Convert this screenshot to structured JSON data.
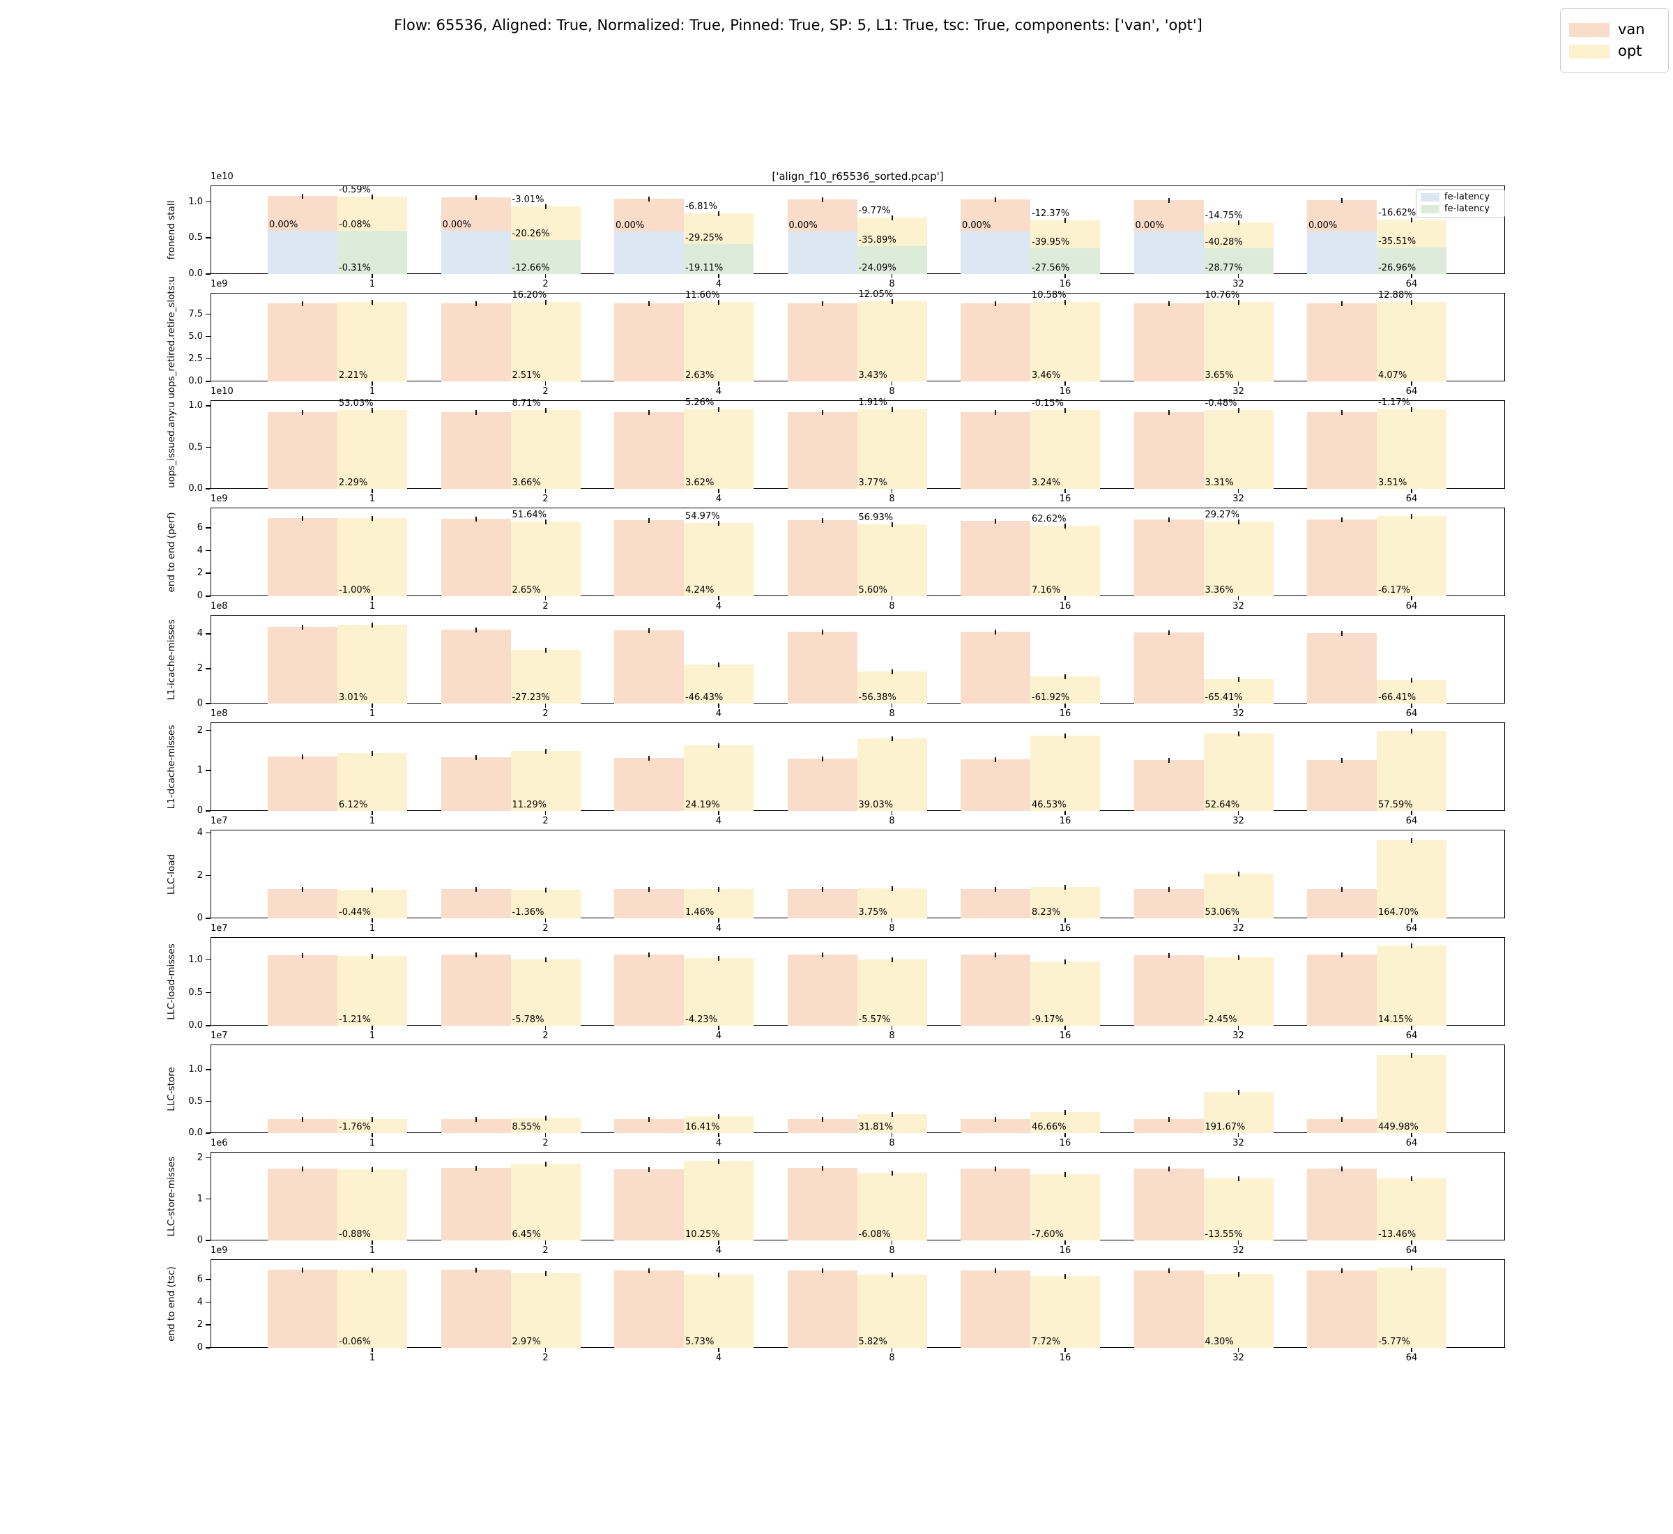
{
  "figure": {
    "title": "Flow: 65536, Aligned: True, Normalized: True, Pinned: True, SP: 5, L1: True, tsc: True, components: ['van', 'opt']",
    "subplot_title": "['align_f10_r65536_sorted.pcap']",
    "legend": [
      {
        "label": "van",
        "color": "#f9dcca"
      },
      {
        "label": "opt",
        "color": "#fdf2cf"
      }
    ]
  },
  "colors": {
    "van": "#f9dcca",
    "opt": "#fdf2cf",
    "fe_latency_van": "#dbe8f4",
    "fe_latency_opt": "#ddecda",
    "error_bar": "#111111"
  },
  "chart_data": {
    "type": "bar",
    "categories": [
      "1",
      "2",
      "4",
      "8",
      "16",
      "32",
      "64"
    ],
    "series_names": [
      "van",
      "opt"
    ],
    "axes_legend": {
      "entries": [
        {
          "label": "fe-latency",
          "color_key": "fe_latency_van"
        },
        {
          "label": "fe-latency",
          "color_key": "fe_latency_opt"
        }
      ]
    },
    "rows": [
      {
        "ylabel": "fronend stall",
        "offset": "1e10",
        "ymax": 1.23,
        "yticks": [
          {
            "v": 0.0,
            "label": "0.0"
          },
          {
            "v": 0.5,
            "label": "0.5"
          },
          {
            "v": 1.0,
            "label": "1.0"
          }
        ],
        "series": [
          {
            "name": "van",
            "values": [
              1.08,
              1.07,
              1.05,
              1.04,
              1.04,
              1.03,
              1.03
            ]
          },
          {
            "name": "opt",
            "values": [
              1.075,
              0.94,
              0.84,
              0.78,
              0.75,
              0.72,
              0.76
            ]
          }
        ],
        "overlays": [
          {
            "name": "fe-latency",
            "on": "van",
            "values": [
              0.6,
              0.6,
              0.595,
              0.59,
              0.59,
              0.59,
              0.59
            ]
          },
          {
            "name": "fe-latency",
            "on": "opt",
            "values": [
              0.6,
              0.475,
              0.42,
              0.385,
              0.36,
              0.355,
              0.365
            ]
          }
        ],
        "annotations": {
          "van_pct": [
            "0.00%",
            "0.00%",
            "0.00%",
            "0.00%",
            "0.00%",
            "0.00%",
            "0.00%"
          ],
          "top": [
            "-0.59%",
            "-3.01%",
            "-6.81%",
            "-9.77%",
            "-12.37%",
            "-14.75%",
            "-16.62%"
          ],
          "mid": [
            "-0.08%",
            "-20.26%",
            "-29.25%",
            "-35.89%",
            "-39.95%",
            "-40.28%",
            "-35.51%"
          ],
          "bottom": [
            "-0.31%",
            "-12.66%",
            "-19.11%",
            "-24.09%",
            "-27.56%",
            "-28.77%",
            "-26.96%"
          ]
        },
        "has_legend": true
      },
      {
        "ylabel": "uops_retired.retire_slots:u",
        "offset": "1e9",
        "ymax": 9.9,
        "yticks": [
          {
            "v": 0.0,
            "label": "0.0"
          },
          {
            "v": 2.5,
            "label": "2.5"
          },
          {
            "v": 5.0,
            "label": "5.0"
          },
          {
            "v": 7.5,
            "label": "7.5"
          }
        ],
        "series": [
          {
            "name": "van",
            "values": [
              8.7,
              8.7,
              8.72,
              8.7,
              8.72,
              8.7,
              8.7
            ]
          },
          {
            "name": "opt",
            "values": [
              8.9,
              8.85,
              8.9,
              8.95,
              8.85,
              8.9,
              8.92
            ]
          }
        ],
        "annotations": {
          "top": [
            "",
            "16.20%",
            "11.60%",
            "12.05%",
            "10.58%",
            "10.76%",
            "12.88%"
          ],
          "bottom": [
            "2.21%",
            "2.51%",
            "2.63%",
            "3.43%",
            "3.46%",
            "3.65%",
            "4.07%"
          ]
        }
      },
      {
        "ylabel": "uops_issued.any:u",
        "offset": "1e10",
        "ymax": 1.07,
        "yticks": [
          {
            "v": 0.0,
            "label": "0.0"
          },
          {
            "v": 0.5,
            "label": "0.5"
          },
          {
            "v": 1.0,
            "label": "1.0"
          }
        ],
        "series": [
          {
            "name": "van",
            "values": [
              0.93,
              0.925,
              0.925,
              0.925,
              0.925,
              0.925,
              0.925
            ]
          },
          {
            "name": "opt",
            "values": [
              0.95,
              0.955,
              0.96,
              0.96,
              0.955,
              0.955,
              0.958
            ]
          }
        ],
        "annotations": {
          "top": [
            "53.03%",
            "8.71%",
            "5.26%",
            "1.91%",
            "-0.15%",
            "-0.48%",
            "-1.17%"
          ],
          "bottom": [
            "2.29%",
            "3.66%",
            "3.62%",
            "3.77%",
            "3.24%",
            "3.31%",
            "3.51%"
          ]
        }
      },
      {
        "ylabel": "end to end (perf)",
        "offset": "1e9",
        "ymax": 7.8,
        "yticks": [
          {
            "v": 0,
            "label": "0"
          },
          {
            "v": 2,
            "label": "2"
          },
          {
            "v": 4,
            "label": "4"
          },
          {
            "v": 6,
            "label": "6"
          }
        ],
        "series": [
          {
            "name": "van",
            "values": [
              6.85,
              6.8,
              6.7,
              6.7,
              6.65,
              6.75,
              6.75
            ]
          },
          {
            "name": "opt",
            "values": [
              6.9,
              6.6,
              6.45,
              6.35,
              6.2,
              6.55,
              7.05
            ]
          }
        ],
        "annotations": {
          "top": [
            "",
            "51.64%",
            "54.97%",
            "56.93%",
            "62.62%",
            "29.27%",
            ""
          ],
          "bottom": [
            "-1.00%",
            "2.65%",
            "4.24%",
            "5.60%",
            "7.16%",
            "3.36%",
            "-6.17%"
          ]
        }
      },
      {
        "ylabel": "L1-icache-misses",
        "offset": "1e8",
        "ymax": 5.1,
        "yticks": [
          {
            "v": 0,
            "label": "0"
          },
          {
            "v": 2,
            "label": "2"
          },
          {
            "v": 4,
            "label": "4"
          }
        ],
        "series": [
          {
            "name": "van",
            "values": [
              4.4,
              4.25,
              4.2,
              4.15,
              4.12,
              4.1,
              4.05
            ]
          },
          {
            "name": "opt",
            "values": [
              4.55,
              3.1,
              2.25,
              1.85,
              1.55,
              1.42,
              1.35
            ]
          }
        ],
        "annotations": {
          "bottom": [
            "3.01%",
            "-27.23%",
            "-46.43%",
            "-56.38%",
            "-61.92%",
            "-65.41%",
            "-66.41%"
          ]
        }
      },
      {
        "ylabel": "L1-dcache-misses",
        "offset": "1e8",
        "ymax": 2.2,
        "yticks": [
          {
            "v": 0,
            "label": "0"
          },
          {
            "v": 1,
            "label": "1"
          },
          {
            "v": 2,
            "label": "2"
          }
        ],
        "series": [
          {
            "name": "van",
            "values": [
              1.35,
              1.34,
              1.31,
              1.3,
              1.28,
              1.27,
              1.27
            ]
          },
          {
            "name": "opt",
            "values": [
              1.43,
              1.49,
              1.62,
              1.8,
              1.87,
              1.92,
              2.0
            ]
          }
        ],
        "annotations": {
          "bottom": [
            "6.12%",
            "11.29%",
            "24.19%",
            "39.03%",
            "46.53%",
            "52.64%",
            "57.59%"
          ]
        }
      },
      {
        "ylabel": "LLC-load",
        "offset": "1e7",
        "ymax": 4.15,
        "yticks": [
          {
            "v": 0,
            "label": "0"
          },
          {
            "v": 2,
            "label": "2"
          },
          {
            "v": 4,
            "label": "4"
          }
        ],
        "series": [
          {
            "name": "van",
            "values": [
              1.36,
              1.36,
              1.36,
              1.36,
              1.37,
              1.36,
              1.38
            ]
          },
          {
            "name": "opt",
            "values": [
              1.35,
              1.34,
              1.38,
              1.41,
              1.48,
              2.08,
              3.65
            ]
          }
        ],
        "annotations": {
          "bottom": [
            "-0.44%",
            "-1.36%",
            "1.46%",
            "3.75%",
            "8.23%",
            "53.06%",
            "164.70%"
          ]
        }
      },
      {
        "ylabel": "LLC-load-misses",
        "offset": "1e7",
        "ymax": 1.35,
        "yticks": [
          {
            "v": 0.0,
            "label": "0.0"
          },
          {
            "v": 0.5,
            "label": "0.5"
          },
          {
            "v": 1.0,
            "label": "1.0"
          }
        ],
        "series": [
          {
            "name": "van",
            "values": [
              1.07,
              1.08,
              1.08,
              1.08,
              1.08,
              1.07,
              1.08
            ]
          },
          {
            "name": "opt",
            "values": [
              1.06,
              1.01,
              1.03,
              1.01,
              0.98,
              1.04,
              1.22
            ]
          }
        ],
        "annotations": {
          "bottom": [
            "-1.21%",
            "-5.78%",
            "-4.23%",
            "-5.57%",
            "-9.17%",
            "-2.45%",
            "14.15%"
          ]
        }
      },
      {
        "ylabel": "LLC-store",
        "offset": "1e7",
        "ymax": 1.4,
        "yticks": [
          {
            "v": 0.0,
            "label": "0.0"
          },
          {
            "v": 0.5,
            "label": "0.5"
          },
          {
            "v": 1.0,
            "label": "1.0"
          }
        ],
        "series": [
          {
            "name": "van",
            "values": [
              0.225,
              0.225,
              0.225,
              0.225,
              0.225,
              0.225,
              0.225
            ]
          },
          {
            "name": "opt",
            "values": [
              0.221,
              0.244,
              0.262,
              0.297,
              0.33,
              0.655,
              1.24
            ]
          }
        ],
        "annotations": {
          "bottom": [
            "-1.76%",
            "8.55%",
            "16.41%",
            "31.81%",
            "46.66%",
            "191.67%",
            "449.98%"
          ]
        }
      },
      {
        "ylabel": "LLC-store-misses",
        "offset": "1e6",
        "ymax": 2.15,
        "yticks": [
          {
            "v": 0,
            "label": "0"
          },
          {
            "v": 1,
            "label": "1"
          },
          {
            "v": 2,
            "label": "2"
          }
        ],
        "series": [
          {
            "name": "van",
            "values": [
              1.75,
              1.76,
              1.73,
              1.76,
              1.74,
              1.74,
              1.75
            ]
          },
          {
            "name": "opt",
            "values": [
              1.73,
              1.87,
              1.93,
              1.64,
              1.61,
              1.5,
              1.51
            ]
          }
        ],
        "annotations": {
          "bottom": [
            "-0.88%",
            "6.45%",
            "10.25%",
            "-6.08%",
            "-7.60%",
            "-13.55%",
            "-13.46%"
          ]
        }
      },
      {
        "ylabel": "end to end (tsc)",
        "offset": "1e9",
        "ymax": 7.8,
        "yticks": [
          {
            "v": 0,
            "label": "0"
          },
          {
            "v": 2,
            "label": "2"
          },
          {
            "v": 4,
            "label": "4"
          },
          {
            "v": 6,
            "label": "6"
          }
        ],
        "series": [
          {
            "name": "van",
            "values": [
              6.85,
              6.85,
              6.8,
              6.8,
              6.8,
              6.8,
              6.8
            ]
          },
          {
            "name": "opt",
            "values": [
              6.85,
              6.6,
              6.45,
              6.45,
              6.3,
              6.5,
              7.05
            ]
          }
        ],
        "annotations": {
          "bottom": [
            "-0.06%",
            "2.97%",
            "5.73%",
            "5.82%",
            "7.72%",
            "4.30%",
            "-5.77%"
          ]
        }
      }
    ]
  }
}
